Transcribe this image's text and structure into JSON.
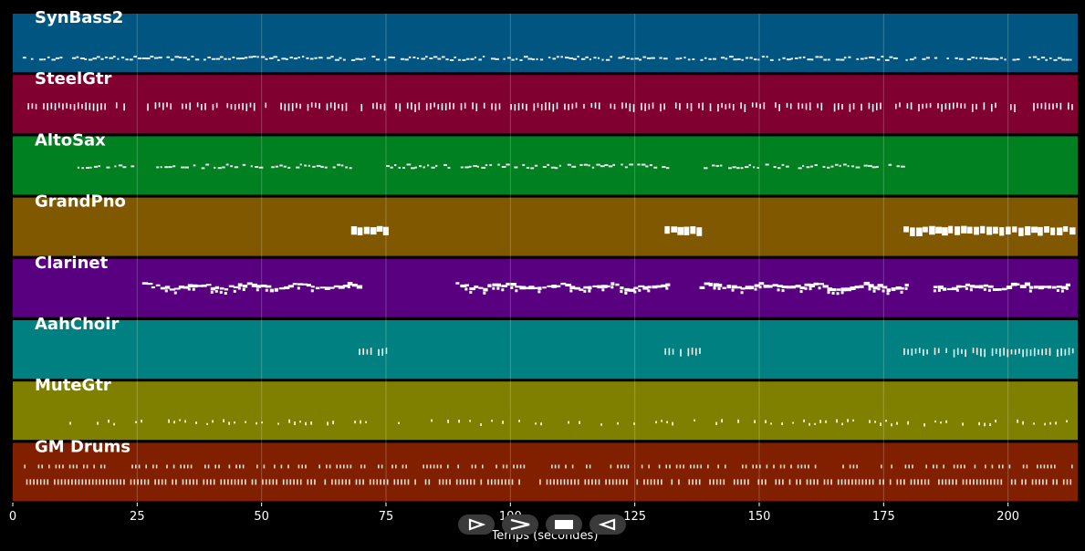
{
  "chart_data": {
    "type": "piano-roll",
    "xlabel": "Temps (secondes)",
    "xlim": [
      0,
      214
    ],
    "x_ticks": [
      0,
      25,
      50,
      75,
      100,
      125,
      150,
      175,
      200
    ],
    "grid": true,
    "tracks": [
      {
        "name": "SynBass2",
        "color": "#005680",
        "segments": [
          [
            2,
            213
          ]
        ],
        "density": 0.85,
        "style": "dash-dense"
      },
      {
        "name": "SteelGtr",
        "color": "#800030",
        "segments": [
          [
            3,
            23
          ],
          [
            27,
            41
          ],
          [
            43,
            98
          ],
          [
            100,
            163
          ],
          [
            165,
            213
          ]
        ],
        "density": 0.7,
        "style": "tick-tall"
      },
      {
        "name": "AltoSax",
        "color": "#008020",
        "segments": [
          [
            13,
            25
          ],
          [
            28,
            69
          ],
          [
            75,
            88
          ],
          [
            90,
            132
          ],
          [
            138,
            180
          ]
        ],
        "density": 0.8,
        "style": "dash"
      },
      {
        "name": "GrandPno",
        "color": "#805800",
        "segments": [
          [
            68,
            76
          ],
          [
            131,
            138
          ],
          [
            179,
            213
          ]
        ],
        "density": 1.0,
        "style": "block"
      },
      {
        "name": "Clarinet",
        "color": "#580080",
        "segments": [
          [
            26,
            70
          ],
          [
            89,
            132
          ],
          [
            138,
            180
          ],
          [
            185,
            213
          ]
        ],
        "density": 0.95,
        "style": "wave"
      },
      {
        "name": "AahChoir",
        "color": "#008080",
        "segments": [
          [
            68,
            76
          ],
          [
            131,
            138
          ],
          [
            179,
            213
          ]
        ],
        "density": 0.9,
        "style": "tick-tall"
      },
      {
        "name": "MuteGtr",
        "color": "#808000",
        "segments": [
          [
            7,
            213
          ]
        ],
        "density": 0.5,
        "style": "sparse"
      },
      {
        "name": "GM Drums",
        "color": "#802000",
        "segments": [
          [
            2,
            213
          ]
        ],
        "density": 0.75,
        "style": "drums"
      }
    ]
  },
  "transport": {
    "buttons": [
      {
        "name": "play-button",
        "icon": "play-icon"
      },
      {
        "name": "fast-forward-button",
        "icon": "fast-forward-icon"
      },
      {
        "name": "stop-button",
        "icon": "stop-icon"
      },
      {
        "name": "rewind-button",
        "icon": "rewind-icon"
      }
    ]
  }
}
